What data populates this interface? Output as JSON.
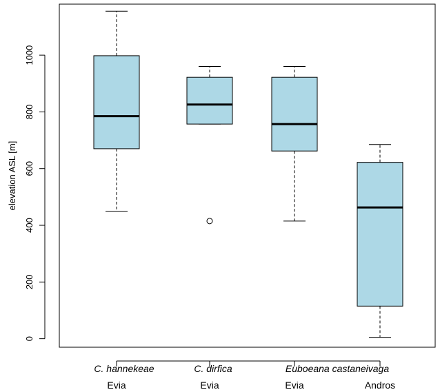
{
  "chart_data": {
    "type": "boxplot",
    "ylabel": "elevation ASL [m]",
    "ylim": [
      -30,
      1180
    ],
    "yticks": [
      0,
      200,
      400,
      600,
      800,
      1000
    ],
    "box_color": "#add8e6",
    "categories": [
      {
        "label_top": "C. hannekeae",
        "label_bottom": "Evia",
        "italic_top": true
      },
      {
        "label_top": "C. dirfica",
        "label_bottom": "Evia",
        "italic_top": true
      },
      {
        "label_top": "Euboeana castaneivaga",
        "label_bottom": "Evia",
        "italic_top": true
      },
      {
        "label_top": "",
        "label_bottom": "Andros",
        "italic_top": true
      }
    ],
    "boxes": [
      {
        "whisker_low": 450,
        "q1": 670,
        "median": 785,
        "q3": 998,
        "whisker_high": 1155,
        "outliers": []
      },
      {
        "whisker_low": 757,
        "q1": 757,
        "median": 826,
        "q3": 922,
        "whisker_high": 960,
        "outliers": [
          415
        ]
      },
      {
        "whisker_low": 415,
        "q1": 662,
        "median": 757,
        "q3": 922,
        "whisker_high": 960,
        "outliers": []
      },
      {
        "whisker_low": 5,
        "q1": 115,
        "median": 463,
        "q3": 622,
        "whisker_high": 685,
        "outliers": []
      }
    ]
  }
}
